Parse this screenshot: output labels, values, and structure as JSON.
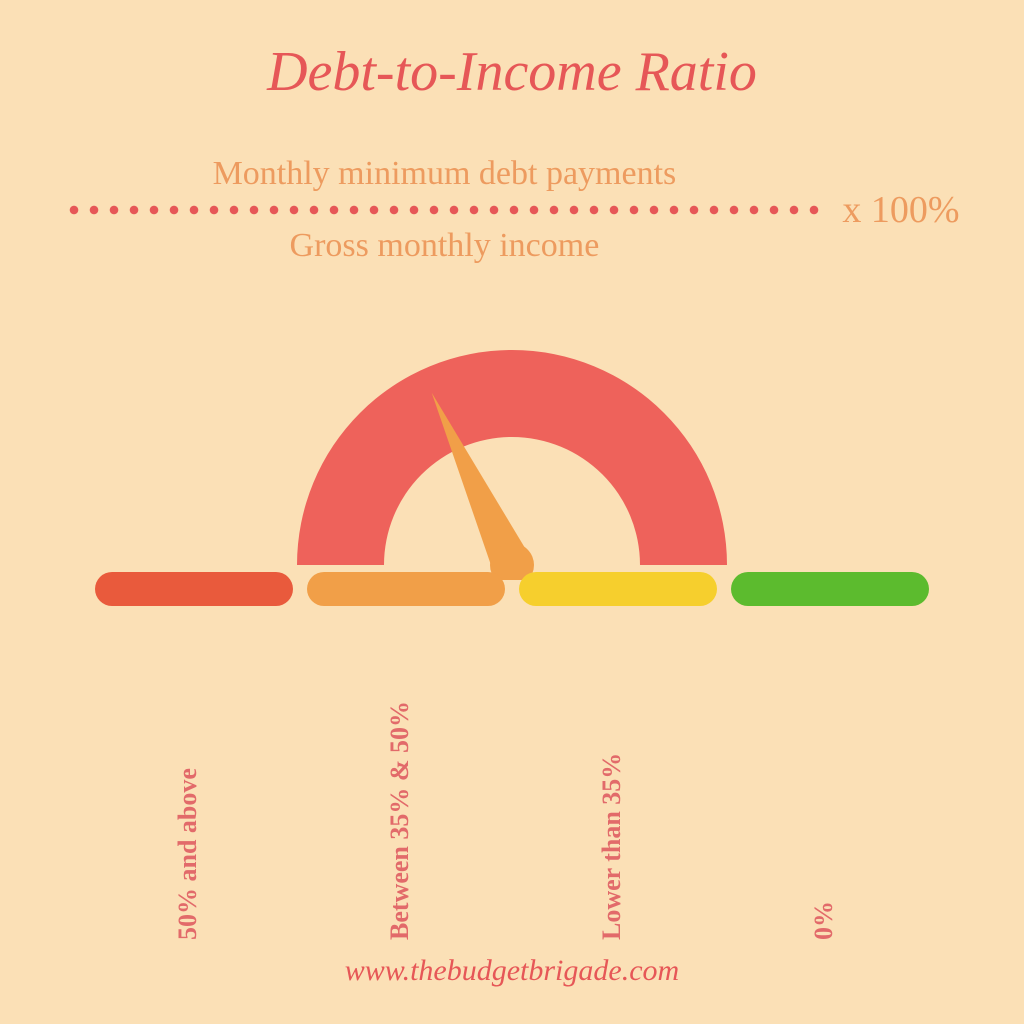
{
  "canvas": {
    "background_color": "#fbe0b6"
  },
  "title": {
    "text": "Debt-to-Income Ratio",
    "color": "#e65757",
    "fontsize": 56
  },
  "formula": {
    "numerator": "Monthly minimum debt payments",
    "denominator": "Gross monthly income",
    "multiplier": "x 100%",
    "text_color": "#ed9b5f",
    "fontsize": 34,
    "multiplier_fontsize": 38,
    "dot_color": "#e65757",
    "dot_diameter": 8,
    "dot_spacing": 20
  },
  "gauge": {
    "outer_radius": 215,
    "inner_radius": 128,
    "arc_color": "#ee625b",
    "needle_color": "#f19f48",
    "needle_angle_deg": 115,
    "needle_length": 190,
    "hub_radius": 22
  },
  "bars": {
    "width": 198,
    "height": 34,
    "gap": 14,
    "items": [
      {
        "color": "#e95a3c",
        "label": "50% and above"
      },
      {
        "color": "#f19f48",
        "label": "Between 35% & 50%"
      },
      {
        "color": "#f6cf2d",
        "label": "Lower than 35%"
      },
      {
        "color": "#5cbb2e",
        "label": "0%"
      }
    ],
    "label_color": "#e26a6a",
    "label_fontsize": 26
  },
  "footer": {
    "text": "www.thebudgetbrigade.com",
    "color": "#e65757",
    "fontsize": 30
  }
}
